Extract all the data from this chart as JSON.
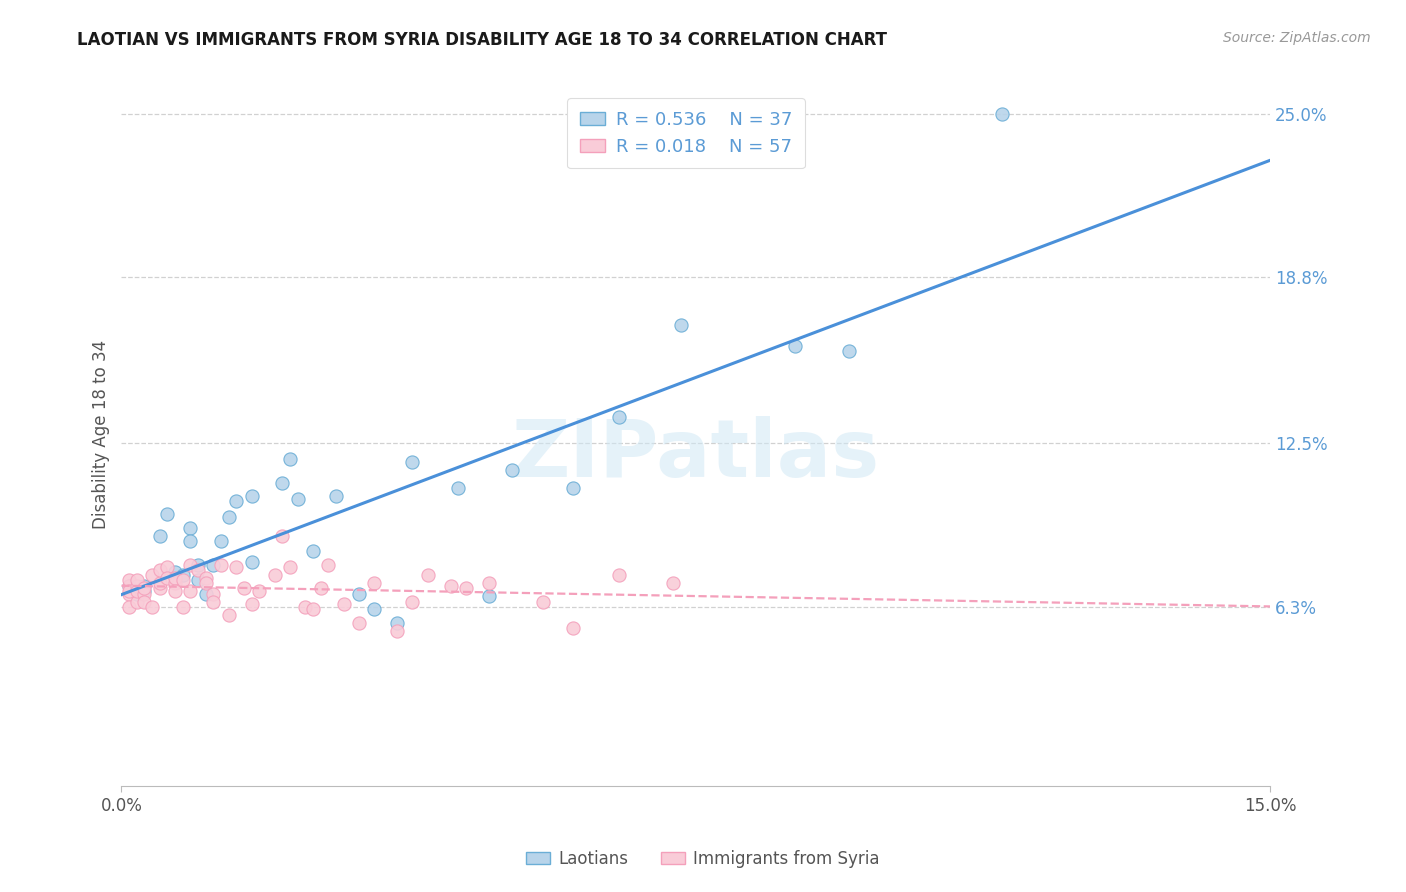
{
  "title": "LAOTIAN VS IMMIGRANTS FROM SYRIA DISABILITY AGE 18 TO 34 CORRELATION CHART",
  "source": "Source: ZipAtlas.com",
  "ylabel": "Disability Age 18 to 34",
  "x_min": 0.0,
  "x_max": 0.15,
  "y_min": 0.0,
  "y_max": 0.25,
  "y_tick_vals": [
    0.063,
    0.125,
    0.188,
    0.25
  ],
  "y_tick_labels": [
    "6.3%",
    "12.5%",
    "18.8%",
    "25.0%"
  ],
  "x_tick_vals": [
    0.0,
    0.15
  ],
  "x_tick_labels": [
    "0.0%",
    "15.0%"
  ],
  "legend_R1": "R = 0.536",
  "legend_N1": "N = 37",
  "legend_R2": "R = 0.018",
  "legend_N2": "N = 57",
  "color_laotian_fill": "#b8d4ea",
  "color_laotian_edge": "#6baed6",
  "color_syria_fill": "#f9ccd8",
  "color_syria_edge": "#f4a0bb",
  "color_line_laotian": "#4a90d9",
  "color_line_syria": "#f4a0bb",
  "color_title": "#1a1a1a",
  "color_source": "#999999",
  "color_ylabel": "#555555",
  "color_ytick": "#5b9bd5",
  "watermark_text": "ZIPatlas",
  "watermark_color": "#d0e8f5",
  "grid_color": "#cccccc",
  "background_color": "#ffffff",
  "fig_width": 14.06,
  "fig_height": 8.92,
  "laotian_x": [
    0.001,
    0.002,
    0.003,
    0.003,
    0.005,
    0.006,
    0.007,
    0.008,
    0.009,
    0.009,
    0.01,
    0.01,
    0.011,
    0.012,
    0.013,
    0.014,
    0.015,
    0.017,
    0.017,
    0.021,
    0.022,
    0.023,
    0.025,
    0.028,
    0.031,
    0.033,
    0.036,
    0.038,
    0.044,
    0.048,
    0.051,
    0.059,
    0.065,
    0.073,
    0.088,
    0.095,
    0.115
  ],
  "laotian_y": [
    0.071,
    0.068,
    0.071,
    0.069,
    0.09,
    0.098,
    0.076,
    0.075,
    0.093,
    0.088,
    0.073,
    0.079,
    0.068,
    0.079,
    0.088,
    0.097,
    0.103,
    0.105,
    0.08,
    0.11,
    0.119,
    0.104,
    0.084,
    0.105,
    0.068,
    0.062,
    0.057,
    0.118,
    0.108,
    0.067,
    0.115,
    0.108,
    0.135,
    0.17,
    0.162,
    0.16,
    0.25
  ],
  "syria_x": [
    0.001,
    0.001,
    0.001,
    0.001,
    0.001,
    0.002,
    0.002,
    0.002,
    0.002,
    0.003,
    0.003,
    0.003,
    0.004,
    0.004,
    0.005,
    0.005,
    0.005,
    0.006,
    0.006,
    0.007,
    0.007,
    0.007,
    0.008,
    0.008,
    0.009,
    0.009,
    0.01,
    0.011,
    0.011,
    0.012,
    0.012,
    0.013,
    0.014,
    0.015,
    0.016,
    0.017,
    0.018,
    0.02,
    0.021,
    0.022,
    0.024,
    0.025,
    0.026,
    0.027,
    0.029,
    0.031,
    0.033,
    0.036,
    0.038,
    0.04,
    0.043,
    0.045,
    0.048,
    0.055,
    0.059,
    0.065,
    0.072
  ],
  "syria_y": [
    0.068,
    0.071,
    0.073,
    0.069,
    0.063,
    0.065,
    0.071,
    0.069,
    0.073,
    0.068,
    0.07,
    0.065,
    0.063,
    0.075,
    0.07,
    0.072,
    0.077,
    0.078,
    0.074,
    0.072,
    0.074,
    0.069,
    0.073,
    0.063,
    0.079,
    0.069,
    0.077,
    0.074,
    0.072,
    0.068,
    0.065,
    0.079,
    0.06,
    0.078,
    0.07,
    0.064,
    0.069,
    0.075,
    0.09,
    0.078,
    0.063,
    0.062,
    0.07,
    0.079,
    0.064,
    0.057,
    0.072,
    0.054,
    0.065,
    0.075,
    0.071,
    0.07,
    0.072,
    0.065,
    0.055,
    0.075,
    0.072
  ]
}
